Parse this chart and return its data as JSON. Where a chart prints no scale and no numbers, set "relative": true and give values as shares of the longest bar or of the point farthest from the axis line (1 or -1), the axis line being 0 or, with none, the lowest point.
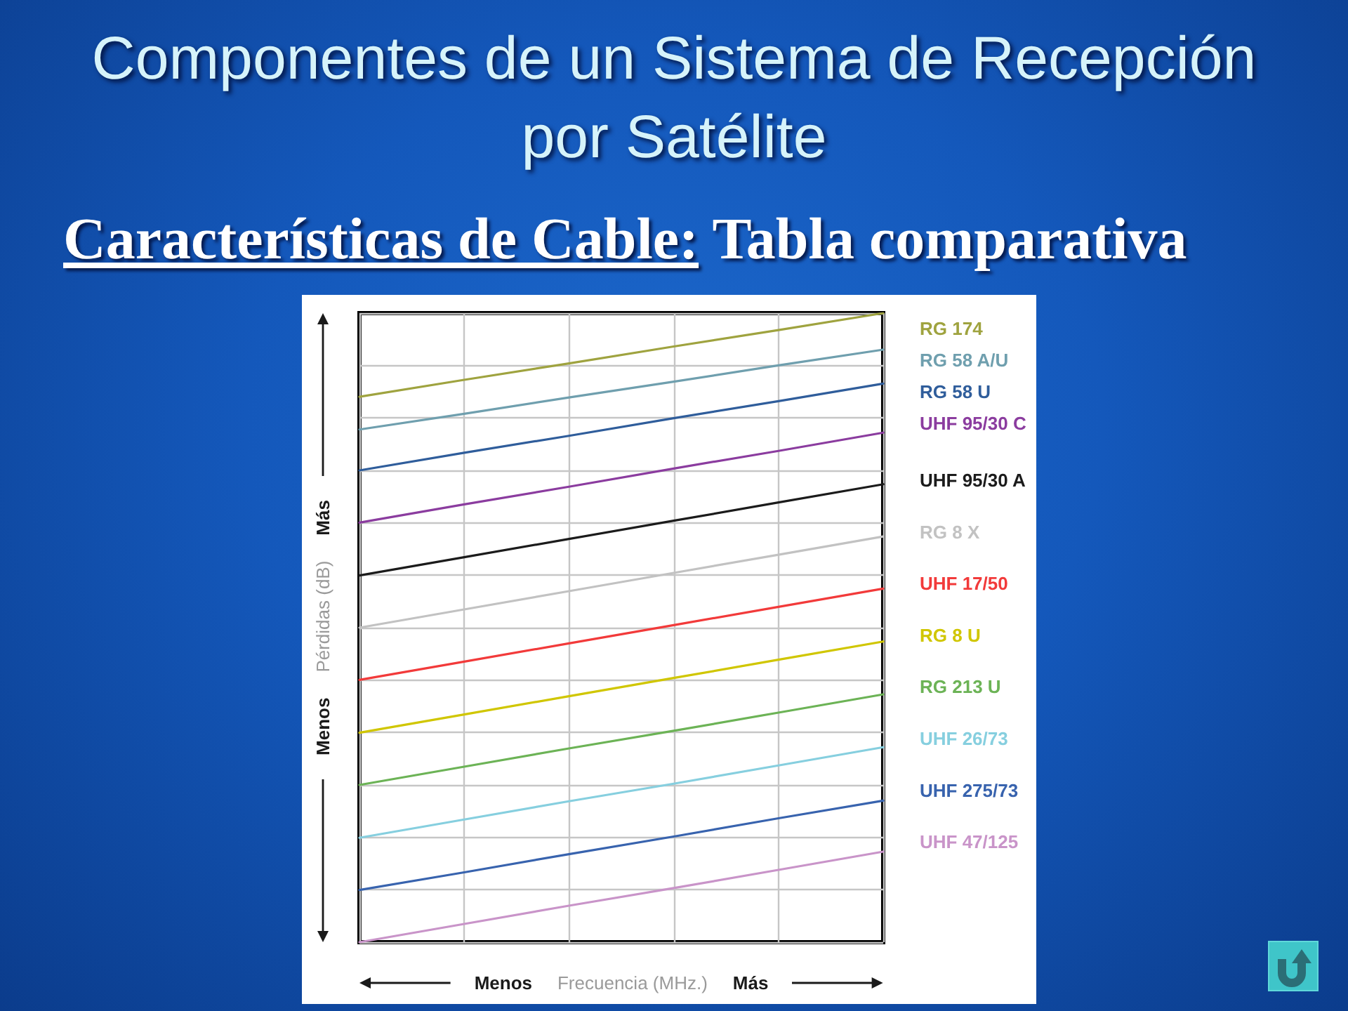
{
  "chart_data": {
    "type": "line",
    "title": "Componentes de un Sistema de Recepción por Satélite",
    "subtitle": "Características de Cable: Tabla comparativa",
    "xlabel": "Frecuencia (MHz.)",
    "ylabel": "Pérdidas (dB)",
    "annotations": [
      "Más",
      "Menos",
      "Menos",
      "Más"
    ],
    "categories": [
      null,
      null,
      null,
      null,
      null,
      null
    ],
    "relative": true,
    "grid": true,
    "legend": "right",
    "series": [
      {
        "name": "RG 174",
        "color": "#9fa33f",
        "values": [
          0.867,
          0.894,
          0.92,
          0.947,
          0.973,
          1.0
        ]
      },
      {
        "name": "RG 58 A/U",
        "color": "#6f9fae",
        "values": [
          0.815,
          0.84,
          0.866,
          0.891,
          0.917,
          0.942
        ]
      },
      {
        "name": "RG 58 U",
        "color": "#2f5d9b",
        "values": [
          0.75,
          0.778,
          0.805,
          0.833,
          0.86,
          0.888
        ]
      },
      {
        "name": "UHF 95/30 C",
        "color": "#8b3c9f",
        "values": [
          0.667,
          0.696,
          0.724,
          0.753,
          0.781,
          0.81
        ]
      },
      {
        "name": "UHF 95/30 A",
        "color": "#1b1b1b",
        "values": [
          0.583,
          0.612,
          0.641,
          0.67,
          0.699,
          0.728
        ]
      },
      {
        "name": "RG 8 X",
        "color": "#c2c2c2",
        "values": [
          0.5,
          0.529,
          0.558,
          0.587,
          0.616,
          0.645
        ]
      },
      {
        "name": "UHF 17/50",
        "color": "#f23a3a",
        "values": [
          0.417,
          0.446,
          0.475,
          0.504,
          0.533,
          0.562
        ]
      },
      {
        "name": "RG 8 U",
        "color": "#d0c600",
        "values": [
          0.333,
          0.362,
          0.391,
          0.42,
          0.449,
          0.478
        ]
      },
      {
        "name": "RG 213 U",
        "color": "#6cb356",
        "values": [
          0.25,
          0.279,
          0.308,
          0.336,
          0.365,
          0.394
        ]
      },
      {
        "name": "UHF 26/73",
        "color": "#86cfdf",
        "values": [
          0.166,
          0.195,
          0.224,
          0.252,
          0.281,
          0.31
        ]
      },
      {
        "name": "UHF 275/73",
        "color": "#3863ae",
        "values": [
          0.083,
          0.111,
          0.14,
          0.168,
          0.197,
          0.225
        ]
      },
      {
        "name": "UHF 47/125",
        "color": "#c994c9",
        "values": [
          0,
          0.029,
          0.058,
          0.086,
          0.115,
          0.144
        ]
      }
    ]
  }
}
